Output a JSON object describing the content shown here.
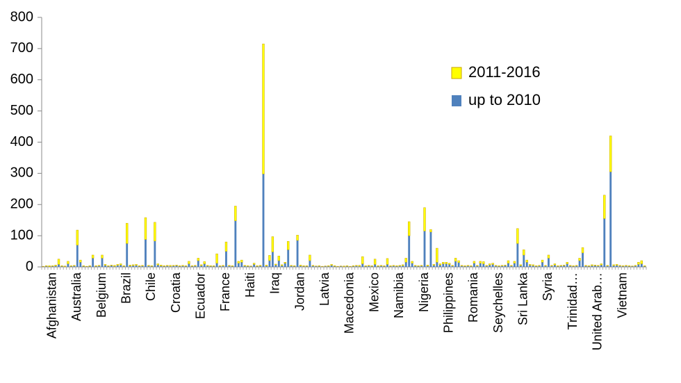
{
  "chart_data": {
    "type": "stacked_bar",
    "categories": [
      null,
      null,
      null,
      "Afghanistan",
      null,
      null,
      null,
      null,
      null,
      null,
      null,
      "Australia",
      null,
      null,
      null,
      null,
      null,
      null,
      null,
      "Belgium",
      null,
      null,
      null,
      null,
      null,
      null,
      null,
      "Brazil",
      null,
      null,
      null,
      null,
      null,
      null,
      null,
      "Chile",
      null,
      null,
      null,
      null,
      null,
      null,
      null,
      "Croatia",
      null,
      null,
      null,
      null,
      null,
      null,
      null,
      "Ecuador",
      null,
      null,
      null,
      null,
      null,
      null,
      null,
      "France",
      null,
      null,
      null,
      null,
      null,
      null,
      null,
      "Haiti",
      null,
      null,
      null,
      null,
      null,
      null,
      null,
      "Iraq",
      null,
      null,
      null,
      null,
      null,
      null,
      null,
      "Jordan",
      null,
      null,
      null,
      null,
      null,
      null,
      null,
      "Latvia",
      null,
      null,
      null,
      null,
      null,
      null,
      null,
      "Macedonia",
      null,
      null,
      null,
      null,
      null,
      null,
      null,
      "Mexico",
      null,
      null,
      null,
      null,
      null,
      null,
      null,
      "Namibia",
      null,
      null,
      null,
      null,
      null,
      null,
      null,
      "Nigeria",
      null,
      null,
      null,
      null,
      null,
      null,
      null,
      "Philippines",
      null,
      null,
      null,
      null,
      null,
      null,
      null,
      "Romania",
      null,
      null,
      null,
      null,
      null,
      null,
      null,
      "Seychelles",
      null,
      null,
      null,
      null,
      null,
      null,
      null,
      "Sri Lanka",
      null,
      null,
      null,
      null,
      null,
      null,
      null,
      "Syria",
      null,
      null,
      null,
      null,
      null,
      null,
      null,
      "Trinidad…",
      null,
      null,
      null,
      null,
      null,
      null,
      null,
      "United Arab…",
      null,
      null,
      null,
      null,
      null,
      null,
      null,
      "Vietnam",
      null,
      null,
      null,
      null,
      null,
      null,
      null
    ],
    "series": [
      {
        "name": "up to 2010",
        "color": "#4f81bd",
        "values": [
          1,
          2,
          1,
          2,
          3,
          8,
          2,
          1,
          10,
          2,
          3,
          70,
          15,
          2,
          1,
          2,
          28,
          2,
          3,
          28,
          5,
          2,
          4,
          2,
          5,
          6,
          2,
          75,
          3,
          4,
          5,
          2,
          3,
          88,
          3,
          2,
          83,
          6,
          3,
          2,
          3,
          2,
          3,
          4,
          2,
          3,
          2,
          10,
          2,
          3,
          20,
          4,
          10,
          3,
          2,
          2,
          12,
          2,
          3,
          50,
          3,
          2,
          148,
          12,
          15,
          3,
          2,
          2,
          8,
          2,
          3,
          298,
          3,
          20,
          48,
          6,
          20,
          4,
          12,
          55,
          3,
          2,
          85,
          3,
          2,
          2,
          20,
          3,
          2,
          2,
          1,
          2,
          2,
          5,
          2,
          1,
          2,
          1,
          2,
          1,
          2,
          3,
          2,
          10,
          2,
          3,
          2,
          8,
          2,
          3,
          2,
          8,
          2,
          3,
          2,
          3,
          4,
          15,
          100,
          12,
          3,
          2,
          3,
          115,
          3,
          112,
          5,
          15,
          6,
          10,
          10,
          8,
          3,
          18,
          14,
          3,
          2,
          3,
          2,
          12,
          3,
          12,
          10,
          3,
          6,
          8,
          3,
          2,
          3,
          4,
          12,
          3,
          12,
          75,
          4,
          38,
          15,
          5,
          4,
          2,
          3,
          15,
          3,
          28,
          3,
          6,
          2,
          3,
          4,
          10,
          3,
          2,
          3,
          20,
          45,
          3,
          2,
          4,
          4,
          3,
          6,
          155,
          3,
          305,
          4,
          5,
          3,
          2,
          3,
          2,
          2,
          3,
          8,
          10,
          2
        ]
      },
      {
        "name": "2011-2016",
        "color": "#ffff00",
        "values": [
          1,
          2,
          3,
          2,
          3,
          17,
          2,
          2,
          8,
          2,
          2,
          48,
          7,
          2,
          1,
          2,
          10,
          2,
          2,
          10,
          3,
          2,
          2,
          3,
          3,
          4,
          2,
          65,
          3,
          3,
          3,
          2,
          2,
          70,
          2,
          2,
          60,
          4,
          3,
          2,
          2,
          3,
          2,
          2,
          2,
          2,
          2,
          8,
          2,
          2,
          8,
          3,
          7,
          2,
          2,
          2,
          30,
          2,
          2,
          30,
          2,
          2,
          47,
          6,
          7,
          2,
          2,
          1,
          4,
          2,
          2,
          417,
          3,
          17,
          49,
          3,
          15,
          3,
          3,
          27,
          2,
          2,
          17,
          3,
          2,
          2,
          18,
          2,
          1,
          2,
          1,
          1,
          2,
          3,
          2,
          1,
          1,
          2,
          2,
          1,
          2,
          2,
          3,
          23,
          2,
          2,
          2,
          17,
          2,
          2,
          2,
          19,
          2,
          2,
          2,
          2,
          3,
          13,
          45,
          6,
          2,
          2,
          2,
          75,
          3,
          8,
          3,
          45,
          4,
          5,
          5,
          4,
          2,
          10,
          6,
          2,
          2,
          2,
          2,
          6,
          2,
          6,
          7,
          2,
          4,
          4,
          2,
          2,
          2,
          2,
          8,
          2,
          6,
          48,
          3,
          17,
          7,
          3,
          3,
          2,
          2,
          7,
          2,
          10,
          2,
          4,
          2,
          2,
          2,
          5,
          2,
          2,
          2,
          8,
          17,
          2,
          2,
          3,
          2,
          2,
          4,
          75,
          2,
          115,
          3,
          3,
          2,
          2,
          2,
          2,
          1,
          2,
          7,
          10,
          2
        ]
      }
    ],
    "ylim": [
      0,
      800
    ],
    "yticks": [
      0,
      100,
      200,
      300,
      400,
      500,
      600,
      700,
      800
    ],
    "grid": false,
    "legend": "upper-right"
  }
}
